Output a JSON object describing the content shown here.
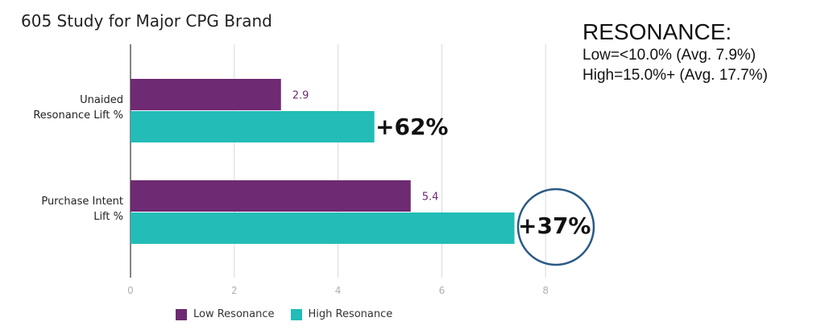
{
  "title": "605 Study for Major CPG Brand",
  "resonance": {
    "heading": "RESONANCE:",
    "low": "Low=<10.0% (Avg. 7.9%)",
    "high": "High=15.0%+ (Avg. 17.7%)"
  },
  "colors": {
    "low": "#6e2a72",
    "high": "#23bcb7",
    "circle": "#2a5a85"
  },
  "chart_data": {
    "type": "bar",
    "orientation": "horizontal",
    "categories": [
      "Unaided\nResonance Lift %",
      "Purchase Intent\nLift %"
    ],
    "series": [
      {
        "name": "Low Resonance",
        "values": [
          2.9,
          5.4
        ],
        "labels": [
          "2.9",
          "5.4"
        ]
      },
      {
        "name": "High Resonance",
        "values": [
          4.7,
          7.4
        ],
        "labels": [
          "",
          ""
        ]
      }
    ],
    "xlim": [
      0,
      8
    ],
    "xticks": [
      0,
      2,
      4,
      6,
      8
    ],
    "grid": true,
    "legend": "bottom",
    "annotations": [
      "+62%",
      "+37%"
    ]
  }
}
